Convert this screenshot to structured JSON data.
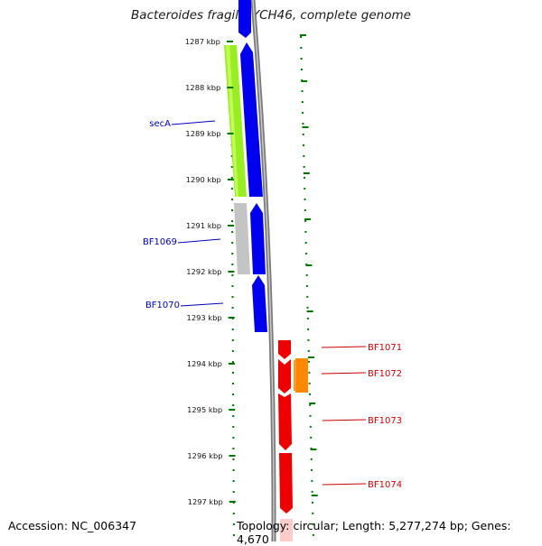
{
  "title": "Bacteroides fragilis YCH46, complete genome",
  "footer": {
    "accession": "Accession: NC_006347",
    "topology": "Topology: circular; Length: 5,277,274 bp; Genes: 4,670"
  },
  "ruler_unit": "kbp",
  "ruler_ticks": [
    {
      "label": "1287 kbp",
      "kbp": 1287
    },
    {
      "label": "1288 kbp",
      "kbp": 1288
    },
    {
      "label": "1289 kbp",
      "kbp": 1289
    },
    {
      "label": "1290 kbp",
      "kbp": 1290
    },
    {
      "label": "1291 kbp",
      "kbp": 1291
    },
    {
      "label": "1292 kbp",
      "kbp": 1292
    },
    {
      "label": "1293 kbp",
      "kbp": 1293
    },
    {
      "label": "1294 kbp",
      "kbp": 1294
    },
    {
      "label": "1295 kbp",
      "kbp": 1295
    },
    {
      "label": "1296 kbp",
      "kbp": 1296
    },
    {
      "label": "1297 kbp",
      "kbp": 1297
    }
  ],
  "gene_labels_left": [
    {
      "name": "secA"
    },
    {
      "name": "BF1069"
    },
    {
      "name": "BF1070"
    }
  ],
  "gene_labels_right": [
    {
      "name": "BF1071"
    },
    {
      "name": "BF1072"
    },
    {
      "name": "BF1073"
    },
    {
      "name": "BF1074"
    }
  ],
  "colors": {
    "reverse_strand": "#0000ee",
    "forward_strand": "#ee0000",
    "secA_feature": "#99ee22",
    "grey_feature": "#c8c8c8",
    "orange_feature": "#ff8800",
    "backbone": "#808080",
    "tick_green": "#007700",
    "label_left": "#0000bb",
    "label_right": "#cc0000"
  }
}
